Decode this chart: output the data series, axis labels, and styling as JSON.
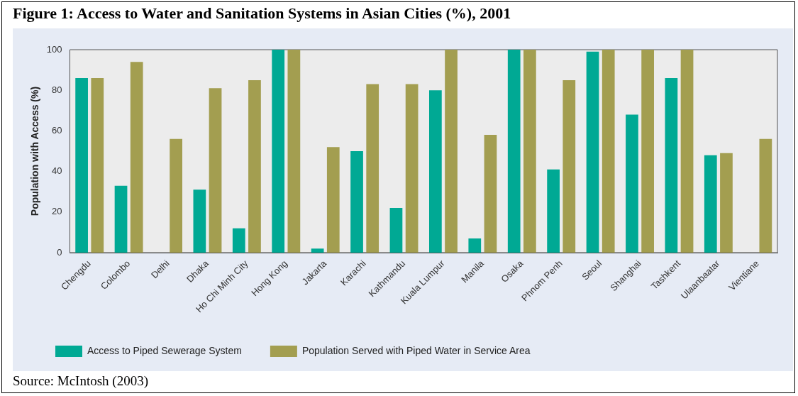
{
  "chart_data": {
    "type": "bar",
    "title": "Figure 1: Access to Water and Sanitation Systems in Asian Cities (%), 2001",
    "ylabel": "Population with Access (%)",
    "categories": [
      "Chengdu",
      "Colombo",
      "Delhi",
      "Dhaka",
      "Ho Chi Minh City",
      "Hong Kong",
      "Jakarta",
      "Karachi",
      "Kathmandu",
      "Kuala Lumpur",
      "Manila",
      "Osaka",
      "Phnom Penh",
      "Seoul",
      "Shanghai",
      "Tashkent",
      "Ulaanbaatar",
      "Vientiane"
    ],
    "series": [
      {
        "name": "Access to Piped Sewerage System",
        "color": "#00a994",
        "values": [
          86,
          33,
          null,
          31,
          12,
          100,
          2,
          50,
          22,
          80,
          7,
          100,
          41,
          99,
          68,
          86,
          48,
          null
        ]
      },
      {
        "name": "Population Served with Piped Water in Service Area",
        "color": "#a39e50",
        "values": [
          86,
          94,
          56,
          81,
          85,
          100,
          52,
          83,
          83,
          100,
          58,
          100,
          85,
          100,
          100,
          100,
          49,
          56
        ]
      }
    ],
    "ylim": [
      0,
      100
    ],
    "yticks": [
      0,
      20,
      40,
      60,
      80,
      100
    ],
    "grid": false,
    "legend": "bottom",
    "annotations": [
      "Source: McIntosh (2003)"
    ]
  }
}
